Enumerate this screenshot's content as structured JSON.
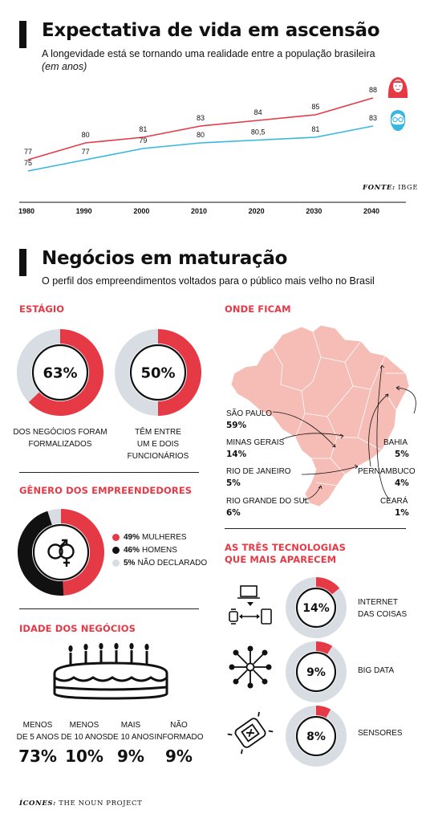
{
  "colors": {
    "red": "#e63946",
    "blue": "#35b7e0",
    "gray": "#d7dde2",
    "pink": "#f6bdb6",
    "ink": "#111111"
  },
  "section1": {
    "title": "Expectativa de vida em ascensão",
    "subtitle": "A longevidade está se tornando uma realidade entre a população brasileira",
    "unit_note": "(em anos)",
    "source_label": "FONTE:",
    "source_name": "IBGE"
  },
  "chart_data": {
    "type": "line",
    "title": "Expectativa de vida em ascensão",
    "x": [
      "1980",
      "1990",
      "2000",
      "2010",
      "2020",
      "2030",
      "2040"
    ],
    "ylim": [
      70,
      92
    ],
    "series": [
      {
        "name": "",
        "color": "#e63946",
        "icon": "woman-icon",
        "values": [
          77,
          80,
          81,
          83,
          84,
          85,
          88
        ],
        "labels": [
          "77",
          "80",
          "81",
          "83",
          "84",
          "85",
          "88"
        ]
      },
      {
        "name": "",
        "color": "#35b7e0",
        "icon": "bearded-man-icon",
        "values": [
          75,
          77,
          79,
          80,
          80.5,
          81,
          83
        ],
        "labels": [
          "75",
          "77",
          "79",
          "80",
          "80,5",
          "81",
          "83"
        ]
      }
    ],
    "grid": false,
    "legend": "icons-right"
  },
  "section2": {
    "title": "Negócios em maturação",
    "subtitle": "O perfil dos empreendimentos voltados para o público mais velho no Brasil"
  },
  "estagio": {
    "title": "ESTÁGIO",
    "items": [
      {
        "value": 63,
        "label_text": "63%",
        "desc": [
          "DOS NEGÓCIOS FORAM",
          "FORMALIZADOS"
        ]
      },
      {
        "value": 50,
        "label_text": "50%",
        "desc": [
          "TÊM ENTRE",
          "UM E DOIS",
          "FUNCIONÁRIOS"
        ]
      }
    ]
  },
  "genero": {
    "title": "GÊNERO DOS EMPREENDEDORES",
    "icon": "gender-icon",
    "items": [
      {
        "value": 49,
        "pct": "49%",
        "label": "MULHERES",
        "color": "#e63946"
      },
      {
        "value": 46,
        "pct": "46%",
        "label": "HOMENS",
        "color": "#111111"
      },
      {
        "value": 5,
        "pct": "5%",
        "label": "NÃO DECLARADO",
        "color": "#d7dde2"
      }
    ]
  },
  "idade": {
    "title": "IDADE DOS NEGÓCIOS",
    "icon": "birthday-cake-icon",
    "items": [
      {
        "desc": [
          "MENOS",
          "DE 5 ANOS"
        ],
        "value": "73%"
      },
      {
        "desc": [
          "MENOS",
          "DE 10 ANOS"
        ],
        "value": "10%"
      },
      {
        "desc": [
          "MAIS",
          "DE 10 ANOS"
        ],
        "value": "9%"
      },
      {
        "desc": [
          "NÃO",
          "INFORMADO"
        ],
        "value": "9%"
      }
    ]
  },
  "onde": {
    "title": "ONDE FICAM",
    "map_icon": "brazil-map",
    "states": [
      {
        "name": "SÃO PAULO",
        "value": "59%"
      },
      {
        "name": "MINAS GERAIS",
        "value": "14%"
      },
      {
        "name": "RIO DE JANEIRO",
        "value": "5%"
      },
      {
        "name": "RIO GRANDE DO SUL",
        "value": "6%"
      },
      {
        "name": "BAHIA",
        "value": "5%"
      },
      {
        "name": "PERNAMBUCO",
        "value": "4%"
      },
      {
        "name": "CEARÁ",
        "value": "1%"
      }
    ]
  },
  "tech": {
    "title_line1": "AS TRÊS TECNOLOGIAS",
    "title_line2": "QUE MAIS APARECEM",
    "items": [
      {
        "value": 14,
        "label_text": "14%",
        "desc": [
          "INTERNET",
          "DAS COISAS"
        ],
        "icon": "iot-devices-icon"
      },
      {
        "value": 9,
        "label_text": "9%",
        "desc": [
          "BIG DATA"
        ],
        "icon": "network-hub-icon"
      },
      {
        "value": 8,
        "label_text": "8%",
        "desc": [
          "SENSORES"
        ],
        "icon": "sensor-chip-icon"
      }
    ]
  },
  "footer": {
    "label": "ÍCONES:",
    "text": "THE NOUN PROJECT"
  }
}
